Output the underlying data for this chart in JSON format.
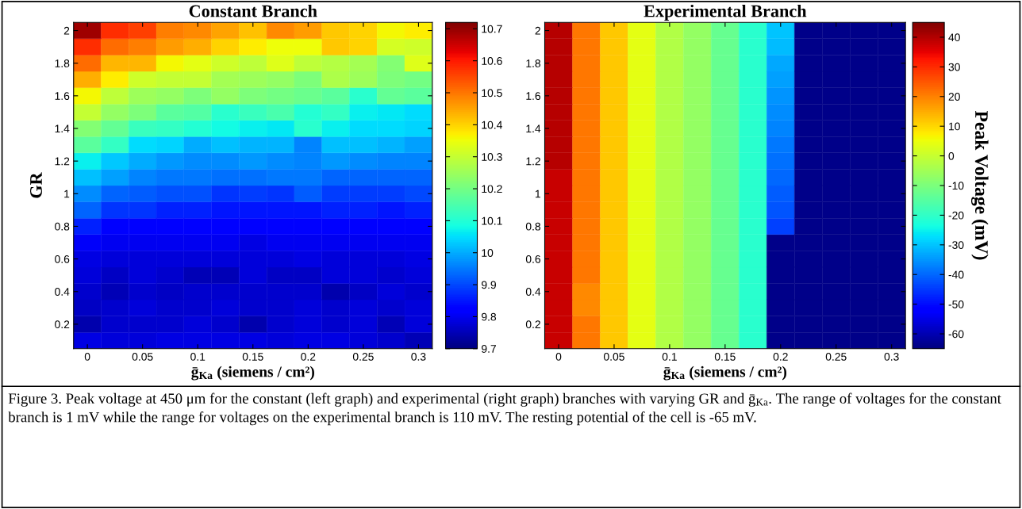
{
  "chart_data": [
    {
      "type": "heatmap",
      "title": "Constant Branch",
      "xlabel": "ḡ$_{Ka}$ (siemens / cm²)",
      "ylabel": "GR",
      "categories": [
        "0",
        null,
        "0.05",
        null,
        "0.1",
        null,
        "0.15",
        null,
        "0.2",
        null,
        "0.25",
        null,
        "0.3"
      ],
      "y_categories": [
        "2",
        null,
        "1.8",
        null,
        "1.6",
        null,
        "1.4",
        null,
        "1.2",
        null,
        "1",
        null,
        "0.8",
        null,
        "0.6",
        null,
        "0.4",
        null,
        "0.2",
        null
      ],
      "cells": [
        [
          10.69,
          10.58,
          10.56,
          10.49,
          10.48,
          10.45,
          10.42,
          10.48,
          10.46,
          10.41,
          10.4,
          10.36,
          10.37
        ],
        [
          10.58,
          10.51,
          10.49,
          10.46,
          10.44,
          10.4,
          10.37,
          10.35,
          10.35,
          10.41,
          10.4,
          10.32,
          10.31
        ],
        [
          10.51,
          10.43,
          10.43,
          10.36,
          10.34,
          10.31,
          10.29,
          10.33,
          10.29,
          10.28,
          10.26,
          10.22,
          10.33
        ],
        [
          10.44,
          10.37,
          10.31,
          10.3,
          10.3,
          10.26,
          10.25,
          10.24,
          10.21,
          10.27,
          10.25,
          10.21,
          10.2
        ],
        [
          10.36,
          10.29,
          10.25,
          10.24,
          10.21,
          10.24,
          10.21,
          10.2,
          10.19,
          10.17,
          10.11,
          10.18,
          10.17
        ],
        [
          10.3,
          10.24,
          10.21,
          10.17,
          10.16,
          10.11,
          10.13,
          10.15,
          10.1,
          10.12,
          10.07,
          10.06,
          10.05
        ],
        [
          10.22,
          10.18,
          10.13,
          10.12,
          10.1,
          10.08,
          10.07,
          10.06,
          10.11,
          10.07,
          10.05,
          10.05,
          10.04
        ],
        [
          10.17,
          10.12,
          10.05,
          10.04,
          10.0,
          10.02,
          10.01,
          10.01,
          9.96,
          10.02,
          10.02,
          10.01,
          9.99
        ],
        [
          10.07,
          10.03,
          10.0,
          9.98,
          9.97,
          9.97,
          9.98,
          9.97,
          9.96,
          9.98,
          9.97,
          9.96,
          9.96
        ],
        [
          10.02,
          9.99,
          9.96,
          9.95,
          9.95,
          9.94,
          9.94,
          9.95,
          9.95,
          9.93,
          9.93,
          9.93,
          9.93
        ],
        [
          9.97,
          9.93,
          9.92,
          9.91,
          9.91,
          9.88,
          9.89,
          9.88,
          9.92,
          9.89,
          9.89,
          9.89,
          9.9
        ],
        [
          9.93,
          9.88,
          9.88,
          9.86,
          9.86,
          9.85,
          9.85,
          9.85,
          9.85,
          9.86,
          9.86,
          9.85,
          9.86
        ],
        [
          9.86,
          9.83,
          9.83,
          9.82,
          9.82,
          9.82,
          9.82,
          9.82,
          9.82,
          9.83,
          9.82,
          9.83,
          9.82
        ],
        [
          9.81,
          9.8,
          9.8,
          9.8,
          9.8,
          9.8,
          9.79,
          9.8,
          9.8,
          9.8,
          9.8,
          9.8,
          9.8
        ],
        [
          9.79,
          9.78,
          9.78,
          9.78,
          9.78,
          9.78,
          9.78,
          9.78,
          9.79,
          9.78,
          9.78,
          9.78,
          9.79
        ],
        [
          9.78,
          9.76,
          9.78,
          9.77,
          9.75,
          9.75,
          9.78,
          9.76,
          9.76,
          9.78,
          9.78,
          9.77,
          9.78
        ],
        [
          9.77,
          9.75,
          9.77,
          9.76,
          9.77,
          9.77,
          9.77,
          9.77,
          9.77,
          9.74,
          9.76,
          9.78,
          9.77
        ],
        [
          9.76,
          9.77,
          9.78,
          9.77,
          9.77,
          9.78,
          9.77,
          9.77,
          9.78,
          9.77,
          9.78,
          9.77,
          9.78
        ],
        [
          9.74,
          9.77,
          9.77,
          9.77,
          9.78,
          9.77,
          9.74,
          9.77,
          9.78,
          9.77,
          9.78,
          9.75,
          9.78
        ],
        [
          9.79,
          9.78,
          9.78,
          9.79,
          9.79,
          9.79,
          9.79,
          9.78,
          9.79,
          9.79,
          9.78,
          9.77,
          9.75
        ]
      ],
      "clim": [
        9.7,
        10.72
      ],
      "cticks": [
        9.7,
        9.8,
        9.9,
        10,
        10.1,
        10.2,
        10.3,
        10.4,
        10.5,
        10.6,
        10.7
      ],
      "annotations": [
        "Figure 3. Peak voltage at 450 μm for the constant (left graph) and experimental (right graph) branches with varying GR and ḡ$_{Ka}$. The range of voltages for the constant branch is 1 mV while the range for voltages on the experimental branch is 110 mV. The resting potential of the cell is -65 mV."
      ]
    },
    {
      "type": "heatmap",
      "title": "Experimental Branch",
      "xlabel": "ḡ$_{Ka}$ (siemens / cm²)",
      "clabel": "Peak Voltage (mV)",
      "categories": [
        "0",
        null,
        "0.05",
        null,
        "0.1",
        null,
        "0.15",
        null,
        "0.2",
        null,
        "0.25",
        null,
        "0.3"
      ],
      "y_categories": [
        "2",
        null,
        "1.8",
        null,
        "1.6",
        null,
        "1.4",
        null,
        "1.2",
        null,
        "1",
        null,
        "0.8",
        null,
        "0.6",
        null,
        "0.4",
        null,
        "0.2",
        null
      ],
      "cells": [
        [
          39.5,
          21,
          11.5,
          4,
          -3,
          -6.7,
          -13,
          -21,
          -30,
          -64,
          -64,
          -64,
          -64
        ],
        [
          39.5,
          21,
          11.5,
          4,
          -3,
          -6.7,
          -13,
          -21,
          -31,
          -64,
          -64,
          -64,
          -64
        ],
        [
          39.5,
          21,
          11.5,
          4,
          -3,
          -6.7,
          -13,
          -21,
          -33,
          -64,
          -64,
          -64,
          -64
        ],
        [
          39.5,
          21,
          11.5,
          4,
          -3,
          -6.7,
          -13,
          -21,
          -34,
          -64,
          -64,
          -64,
          -64
        ],
        [
          39.5,
          21,
          11.5,
          4,
          -3,
          -6.7,
          -13,
          -21,
          -35,
          -64,
          -64,
          -64,
          -64
        ],
        [
          39.5,
          21,
          11.5,
          4,
          -3,
          -6.7,
          -13,
          -21,
          -36,
          -64,
          -64,
          -64,
          -64
        ],
        [
          39.5,
          21,
          11.5,
          4,
          -3,
          -6.7,
          -13,
          -21,
          -37,
          -64,
          -64,
          -64,
          -64
        ],
        [
          39.5,
          21,
          11.5,
          4,
          -3,
          -6.7,
          -13,
          -21,
          -38,
          -64,
          -64,
          -64,
          -64
        ],
        [
          39.5,
          21,
          11.5,
          4,
          -3,
          -6.7,
          -13,
          -21,
          -39,
          -64,
          -64,
          -64,
          -64
        ],
        [
          38,
          21,
          11.5,
          4,
          -3,
          -6.7,
          -13,
          -21,
          -40,
          -64,
          -64,
          -64,
          -64
        ],
        [
          38,
          21,
          11.5,
          4,
          -3,
          -6.7,
          -13,
          -21,
          -41,
          -64,
          -64,
          -64,
          -64
        ],
        [
          38,
          21,
          11.5,
          4,
          -3,
          -6.7,
          -13,
          -21,
          -42,
          -64,
          -64,
          -64,
          -64
        ],
        [
          38,
          21,
          11.5,
          4,
          -3,
          -6.7,
          -13,
          -21,
          -44,
          -64,
          -64,
          -64,
          -64
        ],
        [
          38,
          21,
          11.5,
          4,
          -3,
          -6.7,
          -13,
          -21,
          -64,
          -64,
          -64,
          -64,
          -64
        ],
        [
          38,
          21,
          11.5,
          4,
          -3,
          -6.7,
          -13,
          -21,
          -64,
          -64,
          -64,
          -64,
          -64
        ],
        [
          38,
          21,
          11.5,
          4,
          -3,
          -6.7,
          -13,
          -21,
          -64,
          -64,
          -64,
          -64,
          -64
        ],
        [
          38,
          19,
          11.5,
          4,
          -3,
          -6.7,
          -13,
          -21,
          -64,
          -64,
          -64,
          -64,
          -64
        ],
        [
          38,
          19,
          11.5,
          4,
          -3,
          -6.7,
          -13,
          -21,
          -64,
          -64,
          -64,
          -64,
          -64
        ],
        [
          38,
          21,
          11.5,
          4,
          -3,
          -6.7,
          -13,
          -21,
          -64,
          -64,
          -64,
          -64,
          -64
        ],
        [
          38,
          21,
          11.5,
          4,
          -3,
          -6.7,
          -13,
          -21,
          -64,
          -64,
          -64,
          -64,
          -64
        ]
      ],
      "clim": [
        -65,
        45
      ],
      "cticks": [
        -60,
        -50,
        -40,
        -30,
        -20,
        -10,
        0,
        10,
        20,
        30,
        40
      ]
    }
  ]
}
